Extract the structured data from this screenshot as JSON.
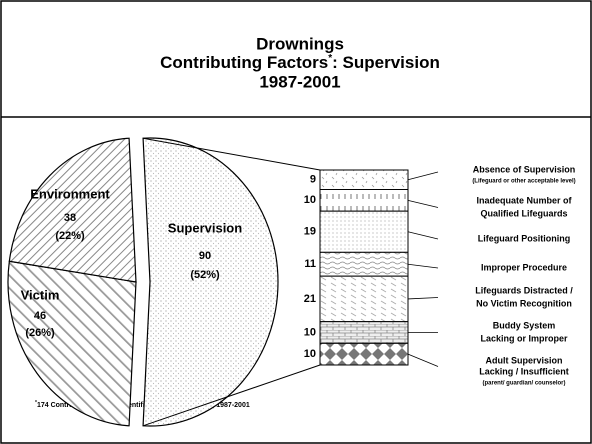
{
  "chart_data": {
    "type": "pie",
    "title": [
      "Drownings",
      [
        "Contributing Factors",
        "*",
        ": Supervision"
      ],
      "1987-2001"
    ],
    "categories": [
      "Supervision",
      "Victim",
      "Environment"
    ],
    "values": [
      90,
      46,
      38
    ],
    "value_labels": [
      "(52%)",
      "(26%)",
      "(22%)"
    ],
    "exploded": 0,
    "breakdown": {
      "values": [
        9,
        10,
        19,
        11,
        21,
        10,
        10
      ],
      "labels": [
        [
          "Absence of Supervision"
        ],
        [
          "Inadequate Number of",
          "Qualified Lifeguards"
        ],
        [
          "Lifeguard Positioning"
        ],
        [
          "Improper Procedure"
        ],
        [
          "Lifeguards Distracted /",
          "No Victim Recognition"
        ],
        [
          "Buddy System",
          "Lacking or Improper"
        ],
        [
          "Adult Supervision",
          "Lacking / Insufficient"
        ]
      ],
      "notes": {
        "0": "(Lifeguard or other acceptable level)",
        "6": "(parent/ guardian/ counselor)"
      }
    },
    "footnote": [
      "*",
      "174 Contributing Factors Identified in 112 Drownings, 1987-2001"
    ]
  }
}
